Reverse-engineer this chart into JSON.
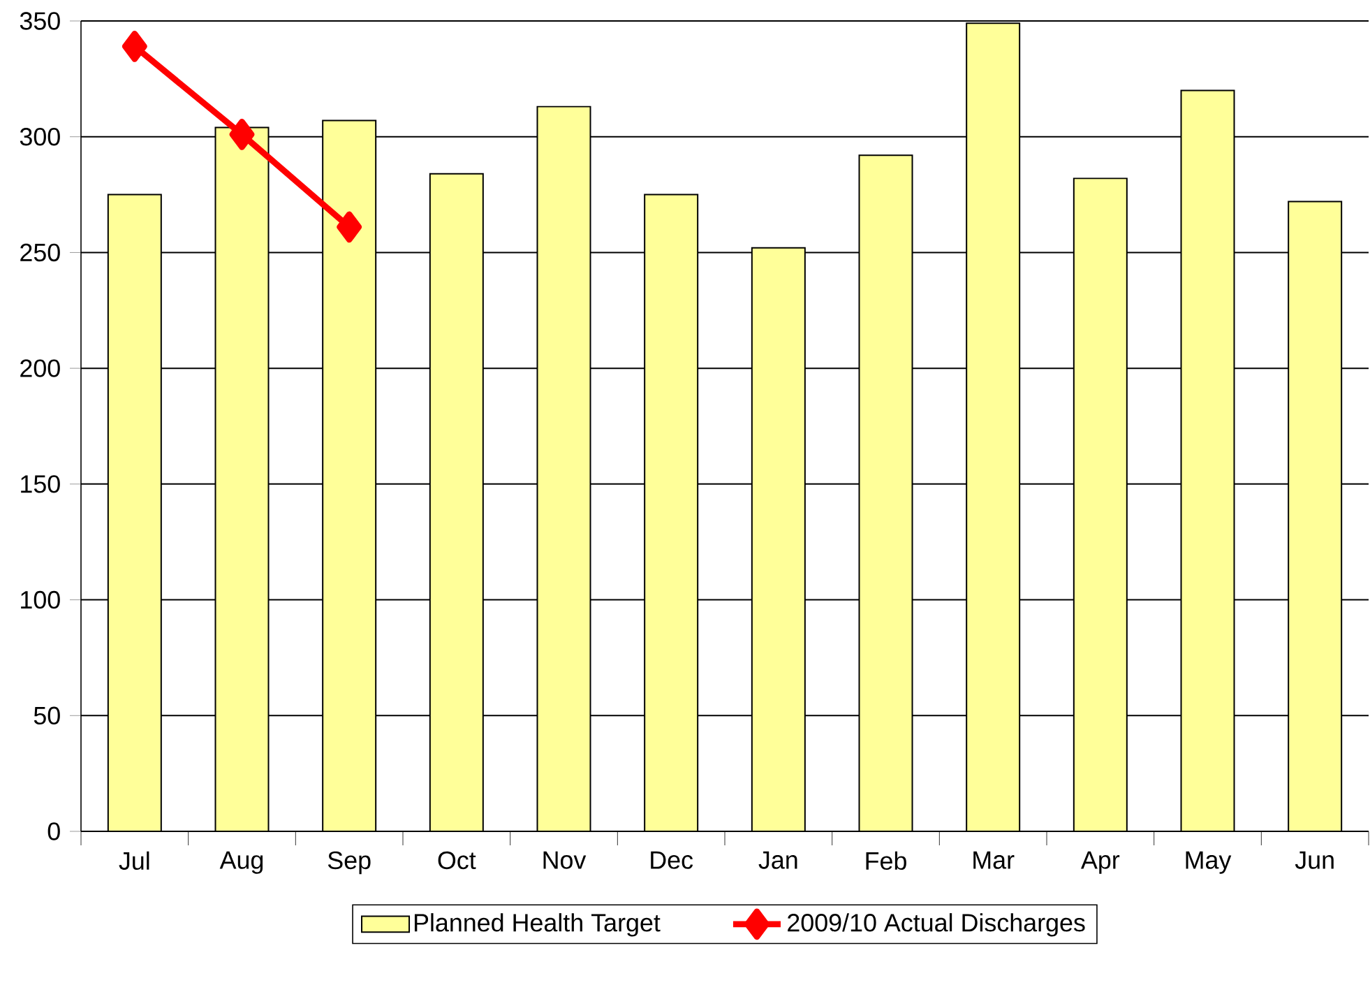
{
  "chart_data": {
    "type": "bar",
    "categories": [
      "Jul",
      "Aug",
      "Sep",
      "Oct",
      "Nov",
      "Dec",
      "Jan",
      "Feb",
      "Mar",
      "Apr",
      "May",
      "Jun"
    ],
    "series": [
      {
        "name": "Planned Health Target",
        "color": "#ffff99",
        "values": [
          275,
          304,
          307,
          284,
          313,
          275,
          252,
          292,
          349,
          282,
          320,
          272
        ]
      },
      {
        "name": "2009/10 Actual Discharges",
        "type": "line",
        "color": "#ff0000",
        "marker": "diamond",
        "values": [
          339,
          301,
          261,
          null,
          null,
          null,
          null,
          null,
          null,
          null,
          null,
          null
        ]
      }
    ],
    "ylim": [
      0,
      350
    ],
    "yticks": [
      0,
      50,
      100,
      150,
      200,
      250,
      300,
      350
    ],
    "grid": "y",
    "legend": "bottom"
  }
}
